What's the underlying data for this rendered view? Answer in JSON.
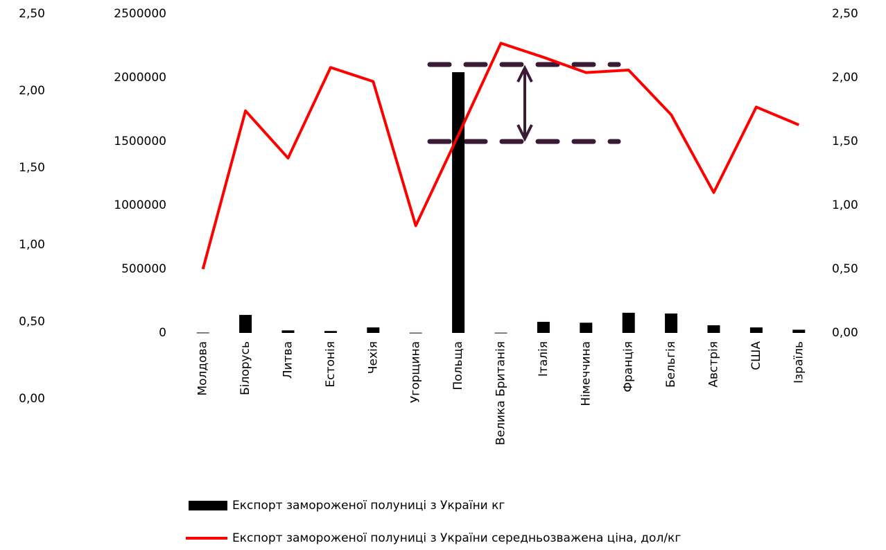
{
  "chart_data": {
    "type": "bar",
    "categories": [
      "Молдова",
      "Білорусь",
      "Литва",
      "Естонія",
      "Чехія",
      "Угорщина",
      "Польща",
      "Велика Британія",
      "Італія",
      "Німеччина",
      "Франція",
      "Бельгія",
      "Австрія",
      "США",
      "Ізраїль"
    ],
    "series": [
      {
        "name": "Експорт замороженої полуниці з України кг",
        "type": "bar",
        "color": "#000000",
        "values": [
          3000,
          141000,
          20000,
          15000,
          43000,
          2000,
          2043000,
          2000,
          87000,
          80000,
          158000,
          152000,
          60000,
          43000,
          25000
        ]
      },
      {
        "name": "Експорт замороженої полуниці з України середньозважена ціна, дол/кг",
        "type": "line",
        "color": "#ff0000",
        "axis": "y2",
        "values": [
          0.5,
          1.74,
          1.37,
          2.08,
          1.97,
          0.84,
          1.55,
          2.27,
          2.16,
          2.04,
          2.06,
          1.71,
          1.1,
          1.77,
          1.63
        ]
      }
    ],
    "ylim": [
      0,
      2500000
    ],
    "yticks": [
      0,
      500000,
      1000000,
      1500000,
      2000000,
      2500000
    ],
    "y2lim": [
      0,
      2.5
    ],
    "y2ticks": [
      {
        "value": 0,
        "label": "0,00"
      },
      {
        "value": 0.5,
        "label": "0,50"
      },
      {
        "value": 1,
        "label": "1,00"
      },
      {
        "value": 1.5,
        "label": "1,50"
      },
      {
        "value": 2,
        "label": "2,00"
      },
      {
        "value": 2.5,
        "label": "2,50"
      }
    ],
    "y3lim": [
      0,
      2.5
    ],
    "y3ticks": [
      {
        "value": 0,
        "label": "0,00"
      },
      {
        "value": 0.5,
        "label": "0,50"
      },
      {
        "value": 1,
        "label": "1,00"
      },
      {
        "value": 1.5,
        "label": "1,50"
      },
      {
        "value": 2,
        "label": "2,00"
      },
      {
        "value": 2.5,
        "label": "2,50"
      }
    ],
    "grid": false
  }
}
